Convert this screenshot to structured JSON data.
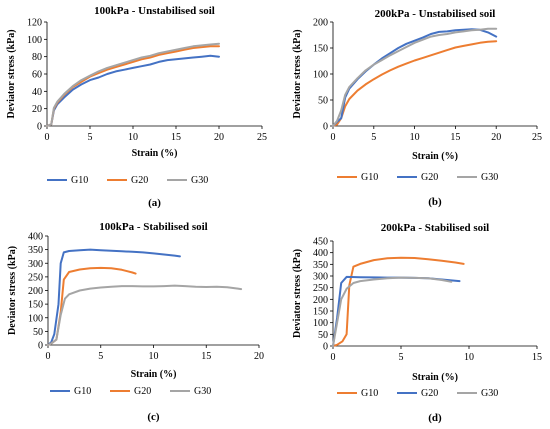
{
  "chart_data": [
    {
      "type": "line",
      "panel_label": "(a)",
      "title": "100kPa - Unstabilised soil",
      "xlabel": "Strain (%)",
      "ylabel": "Deviator stress (kPa)",
      "xlim": [
        0,
        25
      ],
      "ylim": [
        0,
        120
      ],
      "xticks": [
        0,
        5,
        10,
        15,
        20,
        25
      ],
      "yticks": [
        0,
        20,
        40,
        60,
        80,
        100,
        120
      ],
      "grid": false,
      "legend_position": "bottom",
      "series": [
        {
          "name": "G10",
          "color": "#4472c4",
          "points": [
            [
              0,
              0
            ],
            [
              0.5,
              2
            ],
            [
              0.8,
              18
            ],
            [
              1.2,
              25
            ],
            [
              2,
              33
            ],
            [
              3,
              42
            ],
            [
              4,
              48
            ],
            [
              5,
              53
            ],
            [
              6,
              56
            ],
            [
              7,
              60
            ],
            [
              8,
              63
            ],
            [
              9,
              65
            ],
            [
              10,
              67
            ],
            [
              11,
              69
            ],
            [
              12,
              71
            ],
            [
              13,
              74
            ],
            [
              14,
              76
            ],
            [
              15,
              77
            ],
            [
              16,
              78
            ],
            [
              17,
              79
            ],
            [
              18,
              80
            ],
            [
              19,
              81
            ],
            [
              20,
              80
            ]
          ]
        },
        {
          "name": "G20",
          "color": "#ed7d31",
          "points": [
            [
              0,
              0
            ],
            [
              0.5,
              2
            ],
            [
              0.8,
              20
            ],
            [
              1.2,
              27
            ],
            [
              2,
              36
            ],
            [
              3,
              45
            ],
            [
              4,
              51
            ],
            [
              5,
              57
            ],
            [
              6,
              61
            ],
            [
              7,
              65
            ],
            [
              8,
              68
            ],
            [
              9,
              71
            ],
            [
              10,
              74
            ],
            [
              11,
              77
            ],
            [
              12,
              79
            ],
            [
              13,
              82
            ],
            [
              14,
              84
            ],
            [
              15,
              86
            ],
            [
              16,
              88
            ],
            [
              17,
              90
            ],
            [
              18,
              91
            ],
            [
              19,
              92
            ],
            [
              20,
              92
            ]
          ]
        },
        {
          "name": "G30",
          "color": "#a5a5a5",
          "points": [
            [
              0,
              0
            ],
            [
              0.5,
              2
            ],
            [
              0.8,
              21
            ],
            [
              1.2,
              28
            ],
            [
              2,
              37
            ],
            [
              3,
              46
            ],
            [
              4,
              53
            ],
            [
              5,
              58
            ],
            [
              6,
              63
            ],
            [
              7,
              67
            ],
            [
              8,
              70
            ],
            [
              9,
              73
            ],
            [
              10,
              76
            ],
            [
              11,
              79
            ],
            [
              12,
              81
            ],
            [
              13,
              84
            ],
            [
              14,
              86
            ],
            [
              15,
              88
            ],
            [
              16,
              90
            ],
            [
              17,
              92
            ],
            [
              18,
              93
            ],
            [
              19,
              94
            ],
            [
              20,
              95
            ]
          ]
        }
      ]
    },
    {
      "type": "line",
      "panel_label": "(b)",
      "title": "200kPa - Unstabilised soil",
      "xlabel": "Strain (%)",
      "ylabel": "Deviator stress (kPa)",
      "xlim": [
        0,
        25
      ],
      "ylim": [
        0,
        200
      ],
      "xticks": [
        0,
        5,
        10,
        15,
        20,
        25
      ],
      "yticks": [
        0,
        50,
        100,
        150,
        200
      ],
      "grid": false,
      "legend_position": "bottom",
      "series": [
        {
          "name": "G10",
          "color": "#ed7d31",
          "points": [
            [
              0,
              0
            ],
            [
              0.5,
              3
            ],
            [
              1,
              15
            ],
            [
              1.5,
              38
            ],
            [
              2,
              52
            ],
            [
              3,
              68
            ],
            [
              4,
              80
            ],
            [
              5,
              90
            ],
            [
              6,
              99
            ],
            [
              7,
              107
            ],
            [
              8,
              114
            ],
            [
              9,
              120
            ],
            [
              10,
              126
            ],
            [
              11,
              131
            ],
            [
              12,
              136
            ],
            [
              13,
              141
            ],
            [
              14,
              146
            ],
            [
              15,
              151
            ],
            [
              16,
              154
            ],
            [
              17,
              157
            ],
            [
              18,
              160
            ],
            [
              19,
              162
            ],
            [
              20,
              163
            ]
          ]
        },
        {
          "name": "G20",
          "color": "#4472c4",
          "points": [
            [
              0,
              0
            ],
            [
              0.5,
              8
            ],
            [
              1,
              15
            ],
            [
              1.5,
              55
            ],
            [
              2,
              72
            ],
            [
              3,
              90
            ],
            [
              4,
              105
            ],
            [
              5,
              118
            ],
            [
              6,
              130
            ],
            [
              7,
              140
            ],
            [
              8,
              150
            ],
            [
              9,
              158
            ],
            [
              10,
              164
            ],
            [
              11,
              170
            ],
            [
              12,
              177
            ],
            [
              13,
              181
            ],
            [
              14,
              182
            ],
            [
              15,
              184
            ],
            [
              16,
              185
            ],
            [
              17,
              186
            ],
            [
              18,
              185
            ],
            [
              19,
              180
            ],
            [
              20,
              172
            ]
          ]
        },
        {
          "name": "G30",
          "color": "#a5a5a5",
          "points": [
            [
              0,
              0
            ],
            [
              0.5,
              10
            ],
            [
              1,
              30
            ],
            [
              1.5,
              60
            ],
            [
              2,
              75
            ],
            [
              3,
              92
            ],
            [
              4,
              107
            ],
            [
              5,
              118
            ],
            [
              6,
              127
            ],
            [
              7,
              136
            ],
            [
              8,
              144
            ],
            [
              9,
              152
            ],
            [
              10,
              160
            ],
            [
              11,
              166
            ],
            [
              12,
              172
            ],
            [
              13,
              175
            ],
            [
              14,
              177
            ],
            [
              15,
              180
            ],
            [
              16,
              182
            ],
            [
              17,
              184
            ],
            [
              18,
              185
            ],
            [
              19,
              187
            ],
            [
              20,
              187
            ]
          ]
        }
      ]
    },
    {
      "type": "line",
      "panel_label": "(c)",
      "title": "100kPa - Stabilised soil",
      "xlabel": "Strain (%)",
      "ylabel": "Deviator stress (kPa)",
      "xlim": [
        0,
        20
      ],
      "ylim": [
        0,
        400
      ],
      "xticks": [
        0,
        5,
        10,
        15,
        20
      ],
      "yticks": [
        0,
        50,
        100,
        150,
        200,
        250,
        300,
        350,
        400
      ],
      "grid": false,
      "legend_position": "bottom",
      "series": [
        {
          "name": "G10",
          "color": "#4472c4",
          "points": [
            [
              0,
              0
            ],
            [
              0.3,
              10
            ],
            [
              0.6,
              40
            ],
            [
              1,
              150
            ],
            [
              1.2,
              300
            ],
            [
              1.5,
              340
            ],
            [
              2,
              345
            ],
            [
              3,
              348
            ],
            [
              4,
              350
            ],
            [
              5,
              348
            ],
            [
              6,
              346
            ],
            [
              7,
              344
            ],
            [
              8,
              342
            ],
            [
              9,
              340
            ],
            [
              10,
              336
            ],
            [
              11,
              332
            ],
            [
              12,
              328
            ],
            [
              12.5,
              325
            ]
          ]
        },
        {
          "name": "G20",
          "color": "#ed7d31",
          "points": [
            [
              0,
              0
            ],
            [
              0.3,
              5
            ],
            [
              0.8,
              20
            ],
            [
              1.2,
              120
            ],
            [
              1.5,
              240
            ],
            [
              2,
              268
            ],
            [
              3,
              277
            ],
            [
              4,
              282
            ],
            [
              5,
              283
            ],
            [
              6,
              282
            ],
            [
              7,
              276
            ],
            [
              8,
              266
            ],
            [
              8.3,
              262
            ]
          ]
        },
        {
          "name": "G30",
          "color": "#a5a5a5",
          "points": [
            [
              0,
              0
            ],
            [
              0.3,
              5
            ],
            [
              0.8,
              20
            ],
            [
              1.2,
              110
            ],
            [
              1.6,
              170
            ],
            [
              2,
              186
            ],
            [
              3,
              200
            ],
            [
              4,
              207
            ],
            [
              5,
              211
            ],
            [
              6,
              214
            ],
            [
              7,
              216
            ],
            [
              8,
              216
            ],
            [
              9,
              215
            ],
            [
              10,
              215
            ],
            [
              11,
              216
            ],
            [
              12,
              218
            ],
            [
              13,
              216
            ],
            [
              14,
              214
            ],
            [
              15,
              213
            ],
            [
              16,
              214
            ],
            [
              17,
              212
            ],
            [
              18,
              207
            ],
            [
              18.3,
              205
            ]
          ]
        }
      ]
    },
    {
      "type": "line",
      "panel_label": "(d)",
      "title": "200kPa - Stabilised soil",
      "xlabel": "Strain (%)",
      "ylabel": "Deviator stress (kPa)",
      "xlim": [
        0,
        15
      ],
      "ylim": [
        0,
        450
      ],
      "xticks": [
        0,
        5,
        10,
        15
      ],
      "yticks": [
        0,
        50,
        100,
        150,
        200,
        250,
        300,
        350,
        400,
        450
      ],
      "grid": false,
      "legend_position": "bottom",
      "series": [
        {
          "name": "G10",
          "color": "#ed7d31",
          "points": [
            [
              0,
              0
            ],
            [
              0.3,
              5
            ],
            [
              0.7,
              20
            ],
            [
              1,
              50
            ],
            [
              1.2,
              260
            ],
            [
              1.5,
              340
            ],
            [
              2,
              352
            ],
            [
              3,
              368
            ],
            [
              4,
              376
            ],
            [
              5,
              378
            ],
            [
              6,
              377
            ],
            [
              7,
              372
            ],
            [
              8,
              365
            ],
            [
              9,
              358
            ],
            [
              9.6,
              352
            ]
          ]
        },
        {
          "name": "G20",
          "color": "#4472c4",
          "points": [
            [
              0,
              0
            ],
            [
              0.3,
              120
            ],
            [
              0.6,
              270
            ],
            [
              1,
              296
            ],
            [
              2,
              295
            ],
            [
              3,
              294
            ],
            [
              4,
              293
            ],
            [
              5,
              293
            ],
            [
              6,
              292
            ],
            [
              7,
              290
            ],
            [
              8,
              285
            ],
            [
              9,
              280
            ],
            [
              9.3,
              278
            ]
          ]
        },
        {
          "name": "G30",
          "color": "#a5a5a5",
          "points": [
            [
              0,
              0
            ],
            [
              0.3,
              100
            ],
            [
              0.6,
              200
            ],
            [
              1,
              245
            ],
            [
              1.5,
              270
            ],
            [
              2,
              278
            ],
            [
              3,
              285
            ],
            [
              4,
              290
            ],
            [
              5,
              293
            ],
            [
              6,
              292
            ],
            [
              7,
              290
            ],
            [
              8,
              283
            ],
            [
              8.7,
              275
            ]
          ]
        }
      ]
    }
  ]
}
